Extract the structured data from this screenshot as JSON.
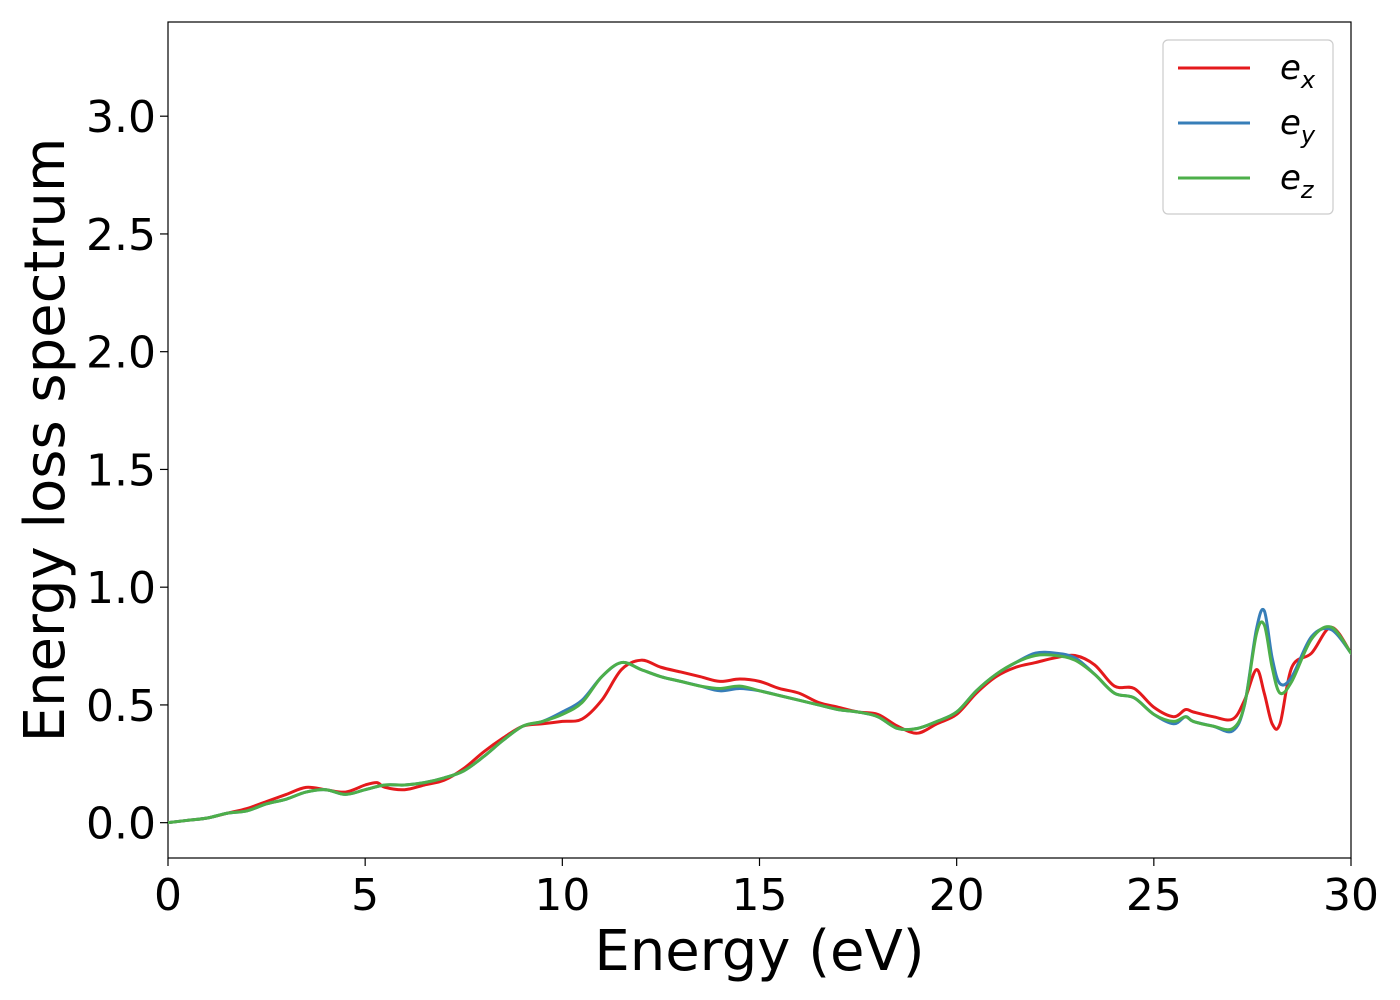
{
  "chart_data": {
    "type": "line",
    "title": "",
    "xlabel": "Energy (eV)",
    "ylabel": "Energy loss spectrum",
    "xlim": [
      0,
      30
    ],
    "ylim": [
      -0.15,
      3.4
    ],
    "xticks": [
      0,
      5,
      10,
      15,
      20,
      25,
      30
    ],
    "xtick_labels": [
      "0",
      "5",
      "10",
      "15",
      "20",
      "25",
      "30"
    ],
    "yticks": [
      0.0,
      0.5,
      1.0,
      1.5,
      2.0,
      2.5,
      3.0
    ],
    "ytick_labels": [
      "0.0",
      "0.5",
      "1.0",
      "1.5",
      "2.0",
      "2.5",
      "3.0"
    ],
    "grid": false,
    "legend_position": "top-right",
    "series": [
      {
        "name": "e_x",
        "label_main": "e",
        "label_sub": "x",
        "color": "#e41a1c",
        "x": [
          0,
          0.5,
          1,
          1.5,
          2,
          2.5,
          3,
          3.5,
          4,
          4.5,
          5,
          5.3,
          5.5,
          6,
          6.5,
          7,
          7.5,
          8,
          8.5,
          9,
          9.5,
          10,
          10.5,
          11,
          11.5,
          12,
          12.5,
          13,
          13.5,
          14,
          14.5,
          15,
          15.5,
          16,
          16.5,
          17,
          17.5,
          18,
          18.5,
          19,
          19.5,
          20,
          20.5,
          21,
          21.5,
          22,
          22.5,
          23,
          23.5,
          24,
          24.5,
          25,
          25.5,
          25.8,
          26,
          26.5,
          27,
          27.3,
          27.6,
          27.8,
          28,
          28.2,
          28.5,
          29,
          29.5,
          30
        ],
        "y": [
          0.0,
          0.01,
          0.02,
          0.04,
          0.06,
          0.09,
          0.12,
          0.15,
          0.14,
          0.13,
          0.16,
          0.17,
          0.15,
          0.14,
          0.16,
          0.18,
          0.23,
          0.3,
          0.36,
          0.41,
          0.42,
          0.43,
          0.44,
          0.52,
          0.65,
          0.69,
          0.66,
          0.64,
          0.62,
          0.6,
          0.61,
          0.6,
          0.57,
          0.55,
          0.51,
          0.49,
          0.47,
          0.46,
          0.41,
          0.38,
          0.42,
          0.46,
          0.55,
          0.62,
          0.66,
          0.68,
          0.7,
          0.71,
          0.67,
          0.58,
          0.57,
          0.49,
          0.45,
          0.48,
          0.47,
          0.45,
          0.44,
          0.52,
          0.65,
          0.55,
          0.42,
          0.42,
          0.66,
          0.72,
          0.83,
          0.72
        ]
      },
      {
        "name": "e_y",
        "label_main": "e",
        "label_sub": "y",
        "color": "#377eb8",
        "x": [
          0,
          0.5,
          1,
          1.5,
          2,
          2.5,
          3,
          3.5,
          4,
          4.5,
          5,
          5.5,
          6,
          6.5,
          7,
          7.5,
          8,
          8.5,
          9,
          9.5,
          10,
          10.5,
          11,
          11.5,
          12,
          12.5,
          13,
          13.5,
          14,
          14.5,
          15,
          15.5,
          16,
          16.5,
          17,
          17.5,
          18,
          18.5,
          19,
          19.5,
          20,
          20.5,
          21,
          21.5,
          22,
          22.5,
          23,
          23.5,
          24,
          24.5,
          25,
          25.5,
          25.8,
          26,
          26.5,
          27,
          27.3,
          27.6,
          27.8,
          28,
          28.2,
          28.5,
          29,
          29.5,
          30
        ],
        "y": [
          0.0,
          0.01,
          0.02,
          0.04,
          0.05,
          0.08,
          0.1,
          0.13,
          0.14,
          0.12,
          0.14,
          0.16,
          0.16,
          0.17,
          0.19,
          0.22,
          0.28,
          0.35,
          0.41,
          0.43,
          0.47,
          0.52,
          0.62,
          0.68,
          0.65,
          0.62,
          0.6,
          0.58,
          0.56,
          0.57,
          0.56,
          0.54,
          0.52,
          0.5,
          0.48,
          0.47,
          0.45,
          0.4,
          0.4,
          0.43,
          0.47,
          0.56,
          0.63,
          0.68,
          0.72,
          0.72,
          0.7,
          0.63,
          0.55,
          0.53,
          0.46,
          0.42,
          0.45,
          0.43,
          0.41,
          0.39,
          0.5,
          0.82,
          0.9,
          0.7,
          0.59,
          0.62,
          0.79,
          0.82,
          0.72
        ]
      },
      {
        "name": "e_z",
        "label_main": "e",
        "label_sub": "z",
        "color": "#4daf4a",
        "x": [
          0,
          0.5,
          1,
          1.5,
          2,
          2.5,
          3,
          3.5,
          4,
          4.5,
          5,
          5.5,
          6,
          6.5,
          7,
          7.5,
          8,
          8.5,
          9,
          9.5,
          10,
          10.5,
          11,
          11.5,
          12,
          12.5,
          13,
          13.5,
          14,
          14.5,
          15,
          15.5,
          16,
          16.5,
          17,
          17.5,
          18,
          18.5,
          19,
          19.5,
          20,
          20.5,
          21,
          21.5,
          22,
          22.5,
          23,
          23.5,
          24,
          24.5,
          25,
          25.5,
          25.8,
          26,
          26.5,
          27,
          27.3,
          27.6,
          27.8,
          28,
          28.2,
          28.5,
          29,
          29.5,
          30
        ],
        "y": [
          0.0,
          0.01,
          0.02,
          0.04,
          0.05,
          0.08,
          0.1,
          0.13,
          0.14,
          0.12,
          0.14,
          0.16,
          0.16,
          0.17,
          0.19,
          0.22,
          0.28,
          0.35,
          0.41,
          0.43,
          0.46,
          0.51,
          0.62,
          0.68,
          0.65,
          0.62,
          0.6,
          0.58,
          0.57,
          0.58,
          0.56,
          0.54,
          0.52,
          0.5,
          0.48,
          0.47,
          0.45,
          0.4,
          0.4,
          0.43,
          0.47,
          0.56,
          0.63,
          0.68,
          0.71,
          0.71,
          0.69,
          0.63,
          0.55,
          0.53,
          0.46,
          0.43,
          0.45,
          0.43,
          0.41,
          0.4,
          0.5,
          0.8,
          0.84,
          0.66,
          0.55,
          0.6,
          0.78,
          0.83,
          0.72
        ]
      }
    ]
  }
}
